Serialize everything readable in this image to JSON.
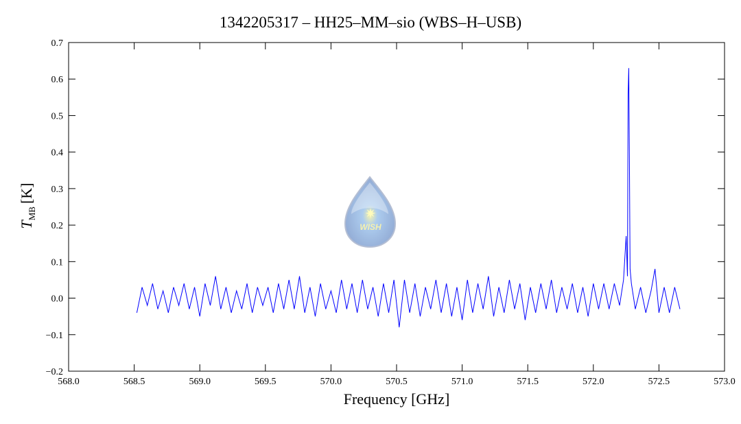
{
  "chart_data": {
    "type": "line",
    "title": "1342205317 – HH25–MM–sio (WBS–H–USB)",
    "x_label": "Frequency [GHz]",
    "y_label": {
      "symbol": "T",
      "subscript": "MB",
      "unit": "[K]"
    },
    "watermark": "WISH",
    "color": "#0000ff",
    "xlim": [
      568.0,
      573.0
    ],
    "ylim": [
      -0.2,
      0.7
    ],
    "xticks": [
      {
        "value": 568,
        "label": "568.0"
      },
      {
        "value": 568.5,
        "label": "568.5"
      },
      {
        "value": 569,
        "label": "569.0"
      },
      {
        "value": 569.5,
        "label": "569.5"
      },
      {
        "value": 570,
        "label": "570.0"
      },
      {
        "value": 570.5,
        "label": "570.5"
      },
      {
        "value": 571,
        "label": "571.0"
      },
      {
        "value": 571.5,
        "label": "571.5"
      },
      {
        "value": 572,
        "label": "572.0"
      },
      {
        "value": 572.5,
        "label": "572.5"
      },
      {
        "value": 573,
        "label": "573.0"
      }
    ],
    "yticks": [
      {
        "value": -0.2,
        "label": "−0.2"
      },
      {
        "value": -0.1,
        "label": "−0.1"
      },
      {
        "value": 0,
        "label": "0.0"
      },
      0.1,
      0.2,
      0.3,
      0.4,
      0.5,
      0.6,
      0.7
    ],
    "x": [
      568.52,
      568.56,
      568.6,
      568.64,
      568.68,
      568.72,
      568.76,
      568.8,
      568.84,
      568.88,
      568.92,
      568.96,
      569.0,
      569.04,
      569.08,
      569.12,
      569.16,
      569.2,
      569.24,
      569.28,
      569.32,
      569.36,
      569.4,
      569.44,
      569.48,
      569.52,
      569.56,
      569.6,
      569.64,
      569.68,
      569.72,
      569.76,
      569.8,
      569.84,
      569.88,
      569.92,
      569.96,
      570.0,
      570.04,
      570.08,
      570.12,
      570.16,
      570.2,
      570.24,
      570.28,
      570.32,
      570.36,
      570.4,
      570.44,
      570.48,
      570.52,
      570.56,
      570.6,
      570.64,
      570.68,
      570.72,
      570.76,
      570.8,
      570.84,
      570.88,
      570.92,
      570.96,
      571.0,
      571.04,
      571.08,
      571.12,
      571.16,
      571.2,
      571.24,
      571.28,
      571.32,
      571.36,
      571.4,
      571.44,
      571.48,
      571.52,
      571.56,
      571.6,
      571.64,
      571.68,
      571.72,
      571.76,
      571.8,
      571.84,
      571.88,
      571.92,
      571.96,
      572.0,
      572.04,
      572.08,
      572.12,
      572.16,
      572.2,
      572.23,
      572.25,
      572.26,
      572.265,
      572.27,
      572.275,
      572.28,
      572.29,
      572.32,
      572.36,
      572.4,
      572.44,
      572.47,
      572.5,
      572.54,
      572.58,
      572.62,
      572.66
    ],
    "values": [
      -0.04,
      0.03,
      -0.02,
      0.04,
      -0.03,
      0.02,
      -0.04,
      0.03,
      -0.02,
      0.04,
      -0.03,
      0.03,
      -0.05,
      0.04,
      -0.02,
      0.06,
      -0.03,
      0.03,
      -0.04,
      0.02,
      -0.03,
      0.04,
      -0.04,
      0.03,
      -0.02,
      0.03,
      -0.04,
      0.04,
      -0.03,
      0.05,
      -0.03,
      0.06,
      -0.04,
      0.03,
      -0.05,
      0.04,
      -0.03,
      0.02,
      -0.04,
      0.05,
      -0.03,
      0.04,
      -0.04,
      0.05,
      -0.03,
      0.03,
      -0.05,
      0.04,
      -0.04,
      0.05,
      -0.08,
      0.05,
      -0.04,
      0.04,
      -0.05,
      0.03,
      -0.03,
      0.05,
      -0.04,
      0.04,
      -0.05,
      0.03,
      -0.06,
      0.05,
      -0.04,
      0.04,
      -0.03,
      0.06,
      -0.05,
      0.03,
      -0.04,
      0.05,
      -0.03,
      0.04,
      -0.06,
      0.03,
      -0.04,
      0.04,
      -0.03,
      0.05,
      -0.04,
      0.03,
      -0.03,
      0.04,
      -0.04,
      0.03,
      -0.05,
      0.04,
      -0.03,
      0.04,
      -0.03,
      0.04,
      -0.02,
      0.05,
      0.17,
      0.06,
      0.56,
      0.63,
      0.38,
      0.08,
      0.04,
      -0.03,
      0.03,
      -0.04,
      0.02,
      0.08,
      -0.04,
      0.03,
      -0.04,
      0.03,
      -0.03
    ]
  }
}
